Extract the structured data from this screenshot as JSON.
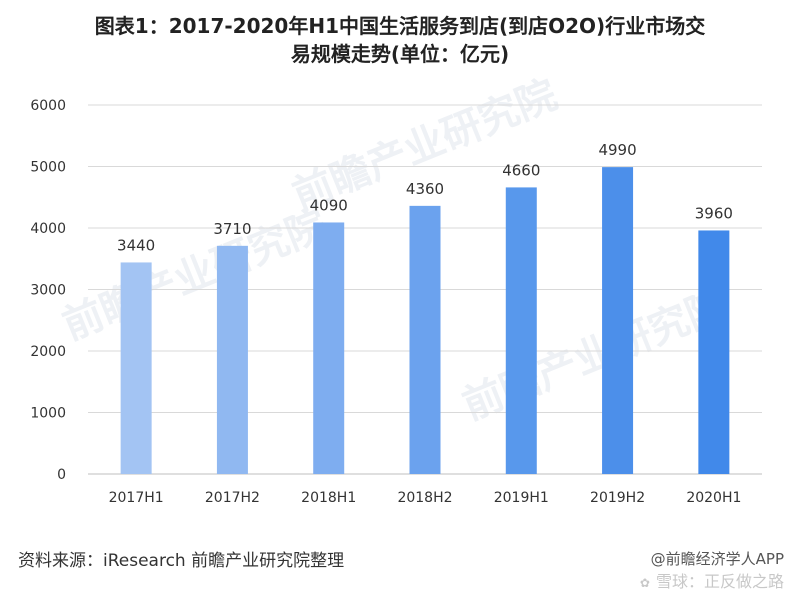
{
  "title_line1": "图表1：2017-2020年H1中国生活服务到店(到店O2O)行业市场交",
  "title_line2": "易规模走势(单位：亿元)",
  "chart_data": {
    "type": "bar",
    "title": "图表1：2017-2020年H1中国生活服务到店(到店O2O)行业市场交易规模走势(单位：亿元)",
    "categories": [
      "2017H1",
      "2017H2",
      "2018H1",
      "2018H2",
      "2019H1",
      "2019H2",
      "2020H1"
    ],
    "values": [
      3440,
      3710,
      4090,
      4360,
      4660,
      4990,
      3960
    ],
    "ylim": [
      0,
      6000
    ],
    "yticks": [
      0,
      1000,
      2000,
      3000,
      4000,
      5000,
      6000
    ],
    "grid": true,
    "bar_colors": [
      "#a3c4f3",
      "#90b8f1",
      "#7eadf0",
      "#6ba2ee",
      "#5898ec",
      "#4c8fea",
      "#4189ea"
    ]
  },
  "source_text": "资料来源：iResearch 前瞻产业研究院整理",
  "credit_text": "@前瞻经济学人APP",
  "watermark_text": "雪球：正反做之路",
  "watermark_logo": "前瞻产业研究院"
}
